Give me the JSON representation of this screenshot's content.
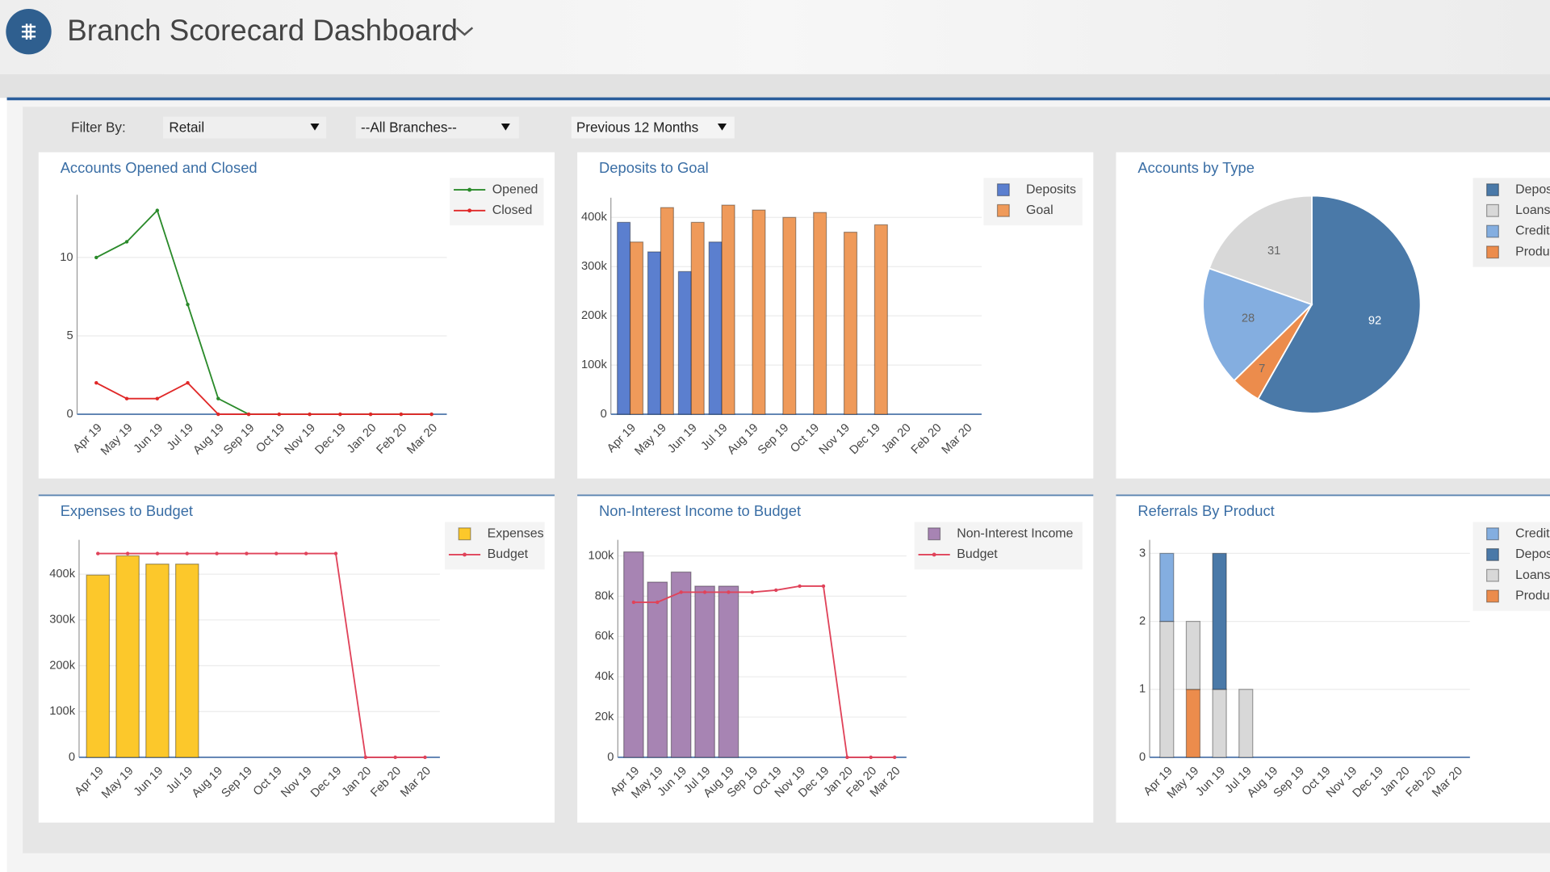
{
  "header": {
    "title": "Branch Scorecard Dashboard"
  },
  "filters": {
    "label": "Filter By:",
    "options": [
      "Retail",
      "--All Branches--",
      "Previous 12 Months"
    ]
  },
  "chart_data": [
    {
      "type": "line",
      "title": "Accounts Opened and Closed",
      "categories": [
        "Apr 19",
        "May 19",
        "Jun 19",
        "Jul 19",
        "Aug 19",
        "Sep 19",
        "Oct 19",
        "Nov 19",
        "Dec 19",
        "Jan 20",
        "Feb 20",
        "Mar 20"
      ],
      "series": [
        {
          "name": "Opened",
          "color": "#2a8a2a",
          "values": [
            10,
            11,
            13,
            7,
            1,
            0,
            0,
            0,
            0,
            0,
            0,
            0
          ]
        },
        {
          "name": "Closed",
          "color": "#e02828",
          "values": [
            2,
            1,
            1,
            2,
            0,
            0,
            0,
            0,
            0,
            0,
            0,
            0
          ]
        }
      ],
      "ylim": [
        0,
        14
      ],
      "yticks": [
        0,
        5,
        10
      ],
      "grid": true,
      "legend": "top-right"
    },
    {
      "type": "bar",
      "title": "Deposits to Goal",
      "categories": [
        "Apr 19",
        "May 19",
        "Jun 19",
        "Jul 19",
        "Aug 19",
        "Sep 19",
        "Oct 19",
        "Nov 19",
        "Dec 19",
        "Jan 20",
        "Feb 20",
        "Mar 20"
      ],
      "series": [
        {
          "name": "Deposits",
          "color": "#5b7fcf",
          "values": [
            390000,
            330000,
            290000,
            350000,
            0,
            0,
            0,
            0,
            0,
            0,
            0,
            0
          ]
        },
        {
          "name": "Goal",
          "color": "#ef9a5a",
          "values": [
            350000,
            420000,
            390000,
            425000,
            415000,
            400000,
            410000,
            370000,
            385000,
            0,
            0,
            0
          ]
        }
      ],
      "ylim": [
        0,
        440000
      ],
      "yticks": [
        0,
        {
          "value": 100000,
          "label": "100k"
        },
        {
          "value": 200000,
          "label": "200k"
        },
        {
          "value": 300000,
          "label": "300k"
        },
        {
          "value": 400000,
          "label": "400k"
        }
      ],
      "grid": true,
      "legend": "top-right"
    },
    {
      "type": "pie",
      "title": "Accounts by Type",
      "categories": [
        "Depos",
        "Loans",
        "Credit",
        "Produ"
      ],
      "values": [
        92,
        31,
        28,
        7
      ],
      "colors": [
        "#4a79a8",
        "#d8d8d8",
        "#84aee0",
        "#ec8c4c"
      ],
      "legend": "top-right"
    },
    {
      "type": "bar",
      "title": "Expenses to Budget",
      "categories": [
        "Apr 19",
        "May 19",
        "Jun 19",
        "Jul 19",
        "Aug 19",
        "Sep 19",
        "Oct 19",
        "Nov 19",
        "Dec 19",
        "Jan 20",
        "Feb 20",
        "Mar 20"
      ],
      "series": [
        {
          "name": "Expenses",
          "color": "#fcc82b",
          "values": [
            398000,
            440000,
            422000,
            422000,
            0,
            0,
            0,
            0,
            0,
            0,
            0,
            0
          ]
        },
        {
          "name": "Budget",
          "type": "line",
          "color": "#e0435a",
          "values": [
            445000,
            445000,
            445000,
            445000,
            445000,
            445000,
            445000,
            445000,
            445000,
            0,
            0,
            0
          ]
        }
      ],
      "ylim": [
        0,
        475000
      ],
      "yticks": [
        0,
        {
          "value": 100000,
          "label": "100k"
        },
        {
          "value": 200000,
          "label": "200k"
        },
        {
          "value": 300000,
          "label": "300k"
        },
        {
          "value": 400000,
          "label": "400k"
        }
      ],
      "grid": true,
      "legend": "top-right"
    },
    {
      "type": "bar",
      "title": "Non-Interest Income to Budget",
      "categories": [
        "Apr 19",
        "May 19",
        "Jun 19",
        "Jul 19",
        "Aug 19",
        "Sep 19",
        "Oct 19",
        "Nov 19",
        "Dec 19",
        "Jan 20",
        "Feb 20",
        "Mar 20"
      ],
      "series": [
        {
          "name": "Non-Interest Income",
          "color": "#a784b3",
          "values": [
            102000,
            87000,
            92000,
            85000,
            85000,
            0,
            0,
            0,
            0,
            0,
            0,
            0
          ]
        },
        {
          "name": "Budget",
          "type": "line",
          "color": "#e0435a",
          "values": [
            77000,
            77000,
            82000,
            82000,
            82000,
            82000,
            83000,
            85000,
            85000,
            0,
            0,
            0
          ]
        }
      ],
      "ylim": [
        0,
        108000
      ],
      "yticks": [
        0,
        {
          "value": 20000,
          "label": "20k"
        },
        {
          "value": 40000,
          "label": "40k"
        },
        {
          "value": 60000,
          "label": "60k"
        },
        {
          "value": 80000,
          "label": "80k"
        },
        {
          "value": 100000,
          "label": "100k"
        }
      ],
      "grid": true,
      "legend": "top-right"
    },
    {
      "type": "bar",
      "stacked": true,
      "title": "Referrals By Product",
      "categories": [
        "Apr 19",
        "May 19",
        "Jun 19",
        "Jul 19",
        "Aug 19",
        "Sep 19",
        "Oct 19",
        "Nov 19",
        "Dec 19",
        "Jan 20",
        "Feb 20",
        "Mar 20"
      ],
      "series": [
        {
          "name": "Credit",
          "color": "#84aee0",
          "values": [
            1,
            0,
            0,
            0,
            0,
            0,
            0,
            0,
            0,
            0,
            0,
            0
          ]
        },
        {
          "name": "Depos",
          "color": "#4a79a8",
          "values": [
            0,
            0,
            2,
            0,
            0,
            0,
            0,
            0,
            0,
            0,
            0,
            0
          ]
        },
        {
          "name": "Loans",
          "color": "#d8d8d8",
          "values": [
            2,
            1,
            1,
            1,
            0,
            0,
            0,
            0,
            0,
            0,
            0,
            0
          ]
        },
        {
          "name": "Produ",
          "color": "#ec8c4c",
          "values": [
            0,
            1,
            0,
            0,
            0,
            0,
            0,
            0,
            0,
            0,
            0,
            0
          ]
        }
      ],
      "ylim": [
        0,
        3.2
      ],
      "yticks": [
        0,
        1,
        2,
        3
      ],
      "grid": true,
      "legend": "top-right"
    }
  ]
}
